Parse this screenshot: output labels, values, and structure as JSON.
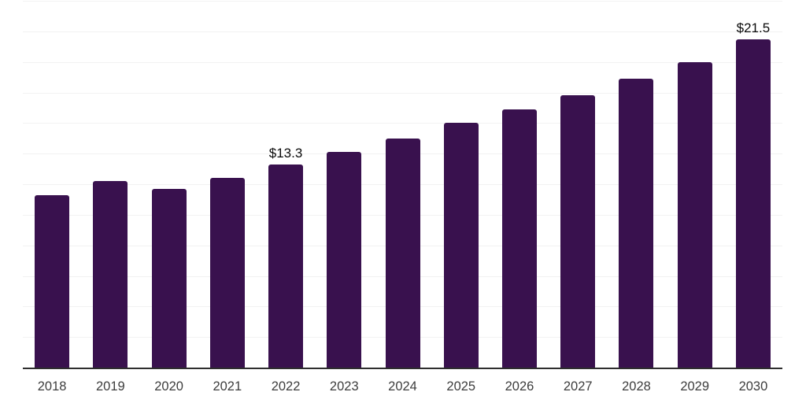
{
  "chart_data": {
    "type": "bar",
    "title": "",
    "xlabel": "",
    "ylabel": "",
    "categories": [
      "2018",
      "2019",
      "2020",
      "2021",
      "2022",
      "2023",
      "2024",
      "2025",
      "2026",
      "2027",
      "2028",
      "2029",
      "2030"
    ],
    "values": [
      11.3,
      12.2,
      11.7,
      12.4,
      13.3,
      14.1,
      15.0,
      16.0,
      16.9,
      17.8,
      18.9,
      20.0,
      21.5
    ],
    "data_labels": [
      {
        "category": "2022",
        "text": "$13.3"
      },
      {
        "category": "2030",
        "text": "$21.5"
      }
    ],
    "ylim": [
      0,
      24
    ],
    "gridline_step": 2,
    "grid": "horizontal",
    "legend": "none",
    "colors": {
      "bar": "#39114E",
      "gridline": "#f2f2f2",
      "axis_line": "#2e2e2e",
      "tick_label": "#3d3d3d",
      "data_label": "#0a0a0a",
      "background": "#ffffff"
    }
  }
}
